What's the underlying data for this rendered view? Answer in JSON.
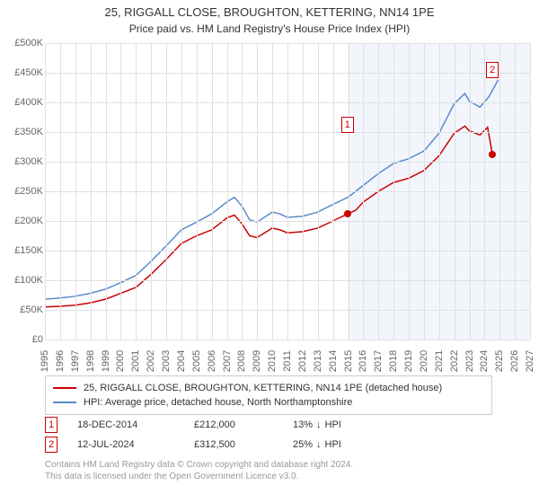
{
  "title_line1": "25, RIGGALL CLOSE, BROUGHTON, KETTERING, NN14 1PE",
  "title_line2": "Price paid vs. HM Land Registry's House Price Index (HPI)",
  "chart": {
    "type": "line",
    "background_color": "#ffffff",
    "grid_color": "#e0e0e0",
    "text_color": "#666666",
    "shade_color": "#f2f6fc",
    "label_fontsize": 11,
    "xlim": [
      1995,
      2027
    ],
    "ylim": [
      0,
      500000
    ],
    "y_ticks": [
      0,
      50000,
      100000,
      150000,
      200000,
      250000,
      300000,
      350000,
      400000,
      450000,
      500000
    ],
    "y_tick_labels": [
      "£0",
      "£50K",
      "£100K",
      "£150K",
      "£200K",
      "£250K",
      "£300K",
      "£350K",
      "£400K",
      "£450K",
      "£500K"
    ],
    "x_ticks": [
      1995,
      1996,
      1997,
      1998,
      1999,
      2000,
      2001,
      2002,
      2003,
      2004,
      2005,
      2006,
      2007,
      2008,
      2009,
      2010,
      2011,
      2012,
      2013,
      2014,
      2015,
      2016,
      2017,
      2018,
      2019,
      2020,
      2021,
      2022,
      2023,
      2024,
      2025,
      2026,
      2027
    ],
    "shade_start_x": 2014.96,
    "shade_end_x": 2027,
    "series": [
      {
        "name": "property",
        "color": "#cc0000",
        "line_width": 1.5,
        "legend_label": "25, RIGGALL CLOSE, BROUGHTON, KETTERING, NN14 1PE (detached house)",
        "points": [
          [
            1995,
            55000
          ],
          [
            1996,
            56000
          ],
          [
            1997,
            58000
          ],
          [
            1998,
            62000
          ],
          [
            1999,
            68000
          ],
          [
            2000,
            78000
          ],
          [
            2001,
            88000
          ],
          [
            2002,
            110000
          ],
          [
            2003,
            135000
          ],
          [
            2004,
            162000
          ],
          [
            2005,
            175000
          ],
          [
            2006,
            185000
          ],
          [
            2007,
            205000
          ],
          [
            2007.5,
            210000
          ],
          [
            2008,
            195000
          ],
          [
            2008.5,
            175000
          ],
          [
            2009,
            172000
          ],
          [
            2010,
            188000
          ],
          [
            2010.5,
            185000
          ],
          [
            2011,
            180000
          ],
          [
            2012,
            182000
          ],
          [
            2013,
            188000
          ],
          [
            2014,
            200000
          ],
          [
            2014.96,
            212000
          ],
          [
            2015.5,
            218000
          ],
          [
            2016,
            232000
          ],
          [
            2017,
            250000
          ],
          [
            2018,
            265000
          ],
          [
            2019,
            272000
          ],
          [
            2020,
            285000
          ],
          [
            2021,
            310000
          ],
          [
            2022,
            348000
          ],
          [
            2022.7,
            360000
          ],
          [
            2023,
            352000
          ],
          [
            2023.7,
            345000
          ],
          [
            2024.2,
            358000
          ],
          [
            2024.52,
            312500
          ]
        ]
      },
      {
        "name": "hpi",
        "color": "#5b8bc9",
        "line_width": 1.5,
        "legend_label": "HPI: Average price, detached house, North Northamptonshire",
        "points": [
          [
            1995,
            68000
          ],
          [
            1996,
            70000
          ],
          [
            1997,
            73000
          ],
          [
            1998,
            78000
          ],
          [
            1999,
            85000
          ],
          [
            2000,
            96000
          ],
          [
            2001,
            108000
          ],
          [
            2002,
            132000
          ],
          [
            2003,
            158000
          ],
          [
            2004,
            185000
          ],
          [
            2005,
            198000
          ],
          [
            2006,
            212000
          ],
          [
            2007,
            232000
          ],
          [
            2007.5,
            240000
          ],
          [
            2008,
            225000
          ],
          [
            2008.5,
            202000
          ],
          [
            2009,
            198000
          ],
          [
            2010,
            215000
          ],
          [
            2010.5,
            212000
          ],
          [
            2011,
            206000
          ],
          [
            2012,
            208000
          ],
          [
            2013,
            215000
          ],
          [
            2014,
            228000
          ],
          [
            2015,
            240000
          ],
          [
            2016,
            260000
          ],
          [
            2017,
            280000
          ],
          [
            2018,
            297000
          ],
          [
            2019,
            305000
          ],
          [
            2020,
            318000
          ],
          [
            2021,
            348000
          ],
          [
            2022,
            398000
          ],
          [
            2022.7,
            415000
          ],
          [
            2023,
            402000
          ],
          [
            2023.7,
            392000
          ],
          [
            2024.3,
            410000
          ],
          [
            2024.9,
            438000
          ]
        ]
      }
    ],
    "markers": [
      {
        "num": "1",
        "x": 2014.96,
        "y": 212000,
        "color": "#cc0000",
        "box_y_offset": -150000
      },
      {
        "num": "2",
        "x": 2024.52,
        "y": 312500,
        "color": "#cc0000",
        "box_y_offset": -142000
      }
    ]
  },
  "sales": [
    {
      "num": "1",
      "date": "18-DEC-2014",
      "price": "£212,000",
      "diff": "13%",
      "arrow": "↓",
      "vs": "HPI",
      "color": "#cc0000"
    },
    {
      "num": "2",
      "date": "12-JUL-2024",
      "price": "£312,500",
      "diff": "25%",
      "arrow": "↓",
      "vs": "HPI",
      "color": "#cc0000"
    }
  ],
  "footer_line1": "Contains HM Land Registry data © Crown copyright and database right 2024.",
  "footer_line2": "This data is licensed under the Open Government Licence v3.0."
}
